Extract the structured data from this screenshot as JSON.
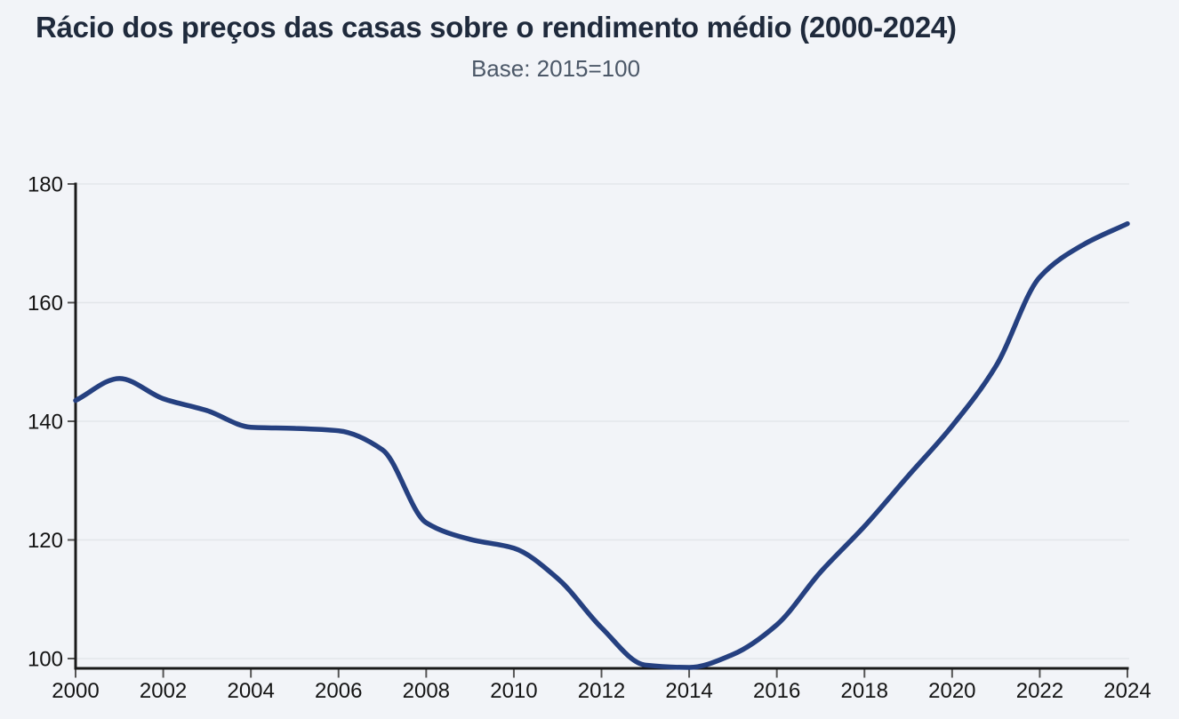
{
  "page": {
    "background": "#f2f4f8"
  },
  "chart_data": {
    "type": "line",
    "title": "Rácio dos preços das casas sobre o rendimento médio (2000-2024)",
    "subtitle": "Base: 2015=100",
    "x": [
      2000,
      2001,
      2002,
      2003,
      2004,
      2005,
      2006,
      2007,
      2008,
      2009,
      2010,
      2011,
      2012,
      2013,
      2014,
      2015,
      2016,
      2017,
      2018,
      2019,
      2020,
      2021,
      2022,
      2023,
      2024
    ],
    "values": [
      143.5,
      147.2,
      143.8,
      141.8,
      139.0,
      138.8,
      138.4,
      135.2,
      122.9,
      120.1,
      118.6,
      113.5,
      105.2,
      98.9,
      98.5,
      100.7,
      105.7,
      114.6,
      122.3,
      130.8,
      139.2,
      149.3,
      164.3,
      169.8,
      173.3
    ],
    "x_ticks": [
      2000,
      2002,
      2004,
      2006,
      2008,
      2010,
      2012,
      2014,
      2016,
      2018,
      2020,
      2022,
      2024
    ],
    "y_ticks": [
      100,
      120,
      140,
      160,
      180
    ],
    "xlim": [
      2000,
      2024
    ],
    "ylim": [
      98.3,
      180
    ],
    "xlabel": "",
    "ylabel": "",
    "grid": "horizontal",
    "legend": "none",
    "colors": {
      "line": "#254080",
      "title": "#1f2a3c",
      "subtitle": "#4c5868",
      "axis": "#1a1a1a",
      "tick": "#555555",
      "tick_label": "#141414",
      "grid": "#e3e6ea",
      "background": "#f2f4f8"
    }
  }
}
